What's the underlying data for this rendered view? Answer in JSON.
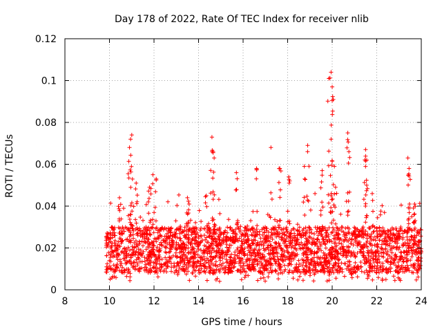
{
  "chart_data": {
    "type": "scatter",
    "title": "Day 178 of 2022, Rate Of TEC Index for receiver nlib",
    "xlabel": "GPS time / hours",
    "ylabel": "ROTI / TECUs",
    "xlim": [
      8,
      24
    ],
    "ylim": [
      0,
      0.12
    ],
    "xticks": [
      8,
      10,
      12,
      14,
      16,
      18,
      20,
      22,
      24
    ],
    "yticks": [
      0,
      0.02,
      0.04,
      0.06,
      0.08,
      0.1,
      0.12
    ],
    "xtick_labels": [
      "8",
      "10",
      "12",
      "14",
      "16",
      "18",
      "20",
      "22",
      "24"
    ],
    "ytick_labels": [
      "0",
      "0.02",
      "0.04",
      "0.06",
      "0.08",
      "0.1",
      "0.12"
    ],
    "grid": true,
    "marker": "+",
    "color": "#ff0000",
    "series": [
      {
        "name": "ROTI",
        "bulk": {
          "x_start": 9.85,
          "x_end": 24.0,
          "typical_low": 0.008,
          "typical_high": 0.03,
          "count": 2600
        },
        "peaks": [
          {
            "x": 10.45,
            "y": 0.044
          },
          {
            "x": 10.9,
            "y": 0.068
          },
          {
            "x": 10.95,
            "y": 0.072
          },
          {
            "x": 11.0,
            "y": 0.074
          },
          {
            "x": 11.2,
            "y": 0.051
          },
          {
            "x": 11.8,
            "y": 0.049
          },
          {
            "x": 11.95,
            "y": 0.055
          },
          {
            "x": 12.1,
            "y": 0.053
          },
          {
            "x": 13.5,
            "y": 0.044
          },
          {
            "x": 14.35,
            "y": 0.045
          },
          {
            "x": 14.6,
            "y": 0.073
          },
          {
            "x": 14.65,
            "y": 0.066
          },
          {
            "x": 14.7,
            "y": 0.063
          },
          {
            "x": 15.7,
            "y": 0.056
          },
          {
            "x": 16.6,
            "y": 0.058
          },
          {
            "x": 17.25,
            "y": 0.068
          },
          {
            "x": 17.65,
            "y": 0.058
          },
          {
            "x": 18.05,
            "y": 0.054
          },
          {
            "x": 18.75,
            "y": 0.059
          },
          {
            "x": 18.9,
            "y": 0.069
          },
          {
            "x": 19.55,
            "y": 0.057
          },
          {
            "x": 19.85,
            "y": 0.101
          },
          {
            "x": 19.95,
            "y": 0.104
          },
          {
            "x": 20.0,
            "y": 0.097
          },
          {
            "x": 20.05,
            "y": 0.091
          },
          {
            "x": 19.95,
            "y": 0.072
          },
          {
            "x": 20.1,
            "y": 0.059
          },
          {
            "x": 20.7,
            "y": 0.075
          },
          {
            "x": 20.75,
            "y": 0.066
          },
          {
            "x": 21.5,
            "y": 0.067
          },
          {
            "x": 21.55,
            "y": 0.062
          },
          {
            "x": 21.8,
            "y": 0.046
          },
          {
            "x": 23.4,
            "y": 0.063
          },
          {
            "x": 23.45,
            "y": 0.058
          },
          {
            "x": 23.7,
            "y": 0.041
          }
        ]
      }
    ]
  }
}
